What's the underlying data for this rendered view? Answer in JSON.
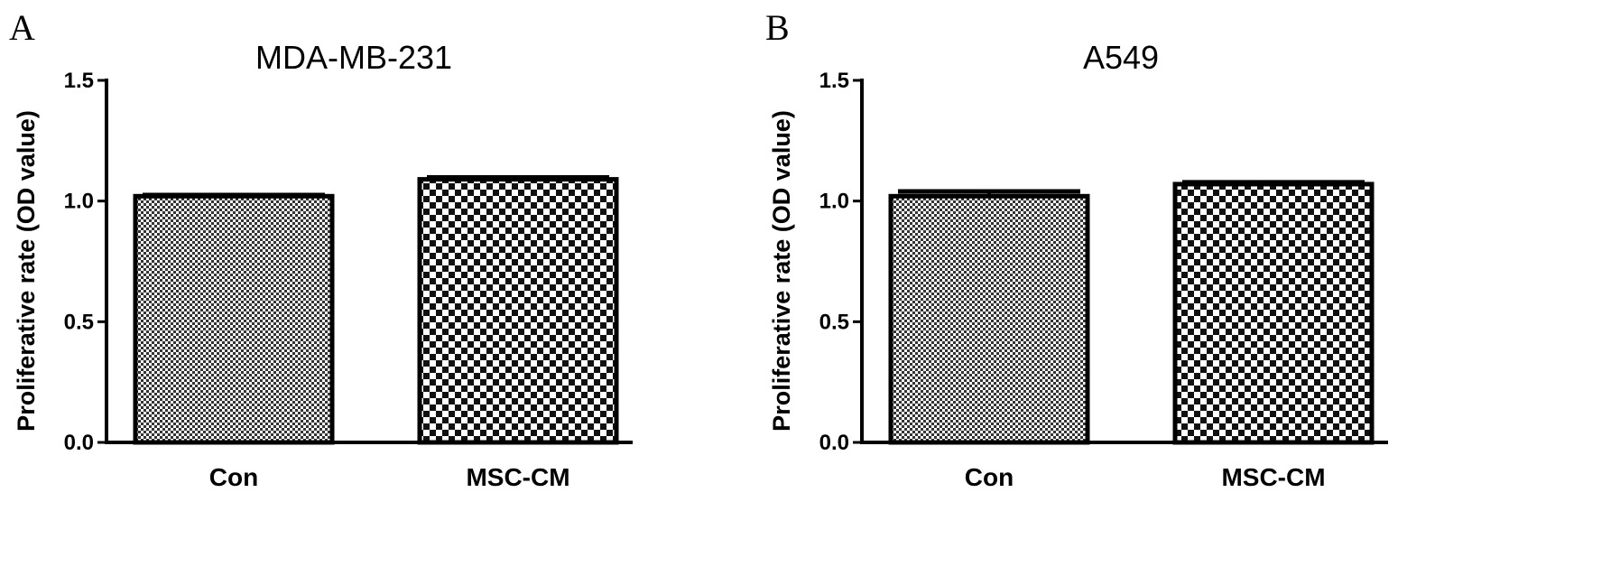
{
  "chart_data": [
    {
      "type": "bar",
      "panel_label": "A",
      "title": "MDA-MB-231",
      "ylabel": "Proliferative rate (OD value)",
      "xlabel": "",
      "categories": [
        "Con",
        "MSC-CM"
      ],
      "values": [
        1.02,
        1.09
      ],
      "errors": [
        0.005,
        0.008
      ],
      "ylim": [
        0,
        1.5
      ],
      "yticks": [
        "0.0",
        "0.5",
        "1.0",
        "1.5"
      ],
      "ytick_values": [
        0,
        0.5,
        1.0,
        1.5
      ],
      "grid": false,
      "bar_patterns": [
        "fine-checker",
        "coarse-checker"
      ]
    },
    {
      "type": "bar",
      "panel_label": "B",
      "title": "A549",
      "ylabel": "Proliferative rate (OD value)",
      "xlabel": "",
      "categories": [
        "Con",
        "MSC-CM"
      ],
      "values": [
        1.02,
        1.07
      ],
      "errors": [
        0.02,
        0.008
      ],
      "ylim": [
        0,
        1.5
      ],
      "yticks": [
        "0.0",
        "0.5",
        "1.0",
        "1.5"
      ],
      "ytick_values": [
        0,
        0.5,
        1.0,
        1.5
      ],
      "grid": false,
      "bar_patterns": [
        "fine-checker",
        "coarse-checker"
      ]
    }
  ]
}
